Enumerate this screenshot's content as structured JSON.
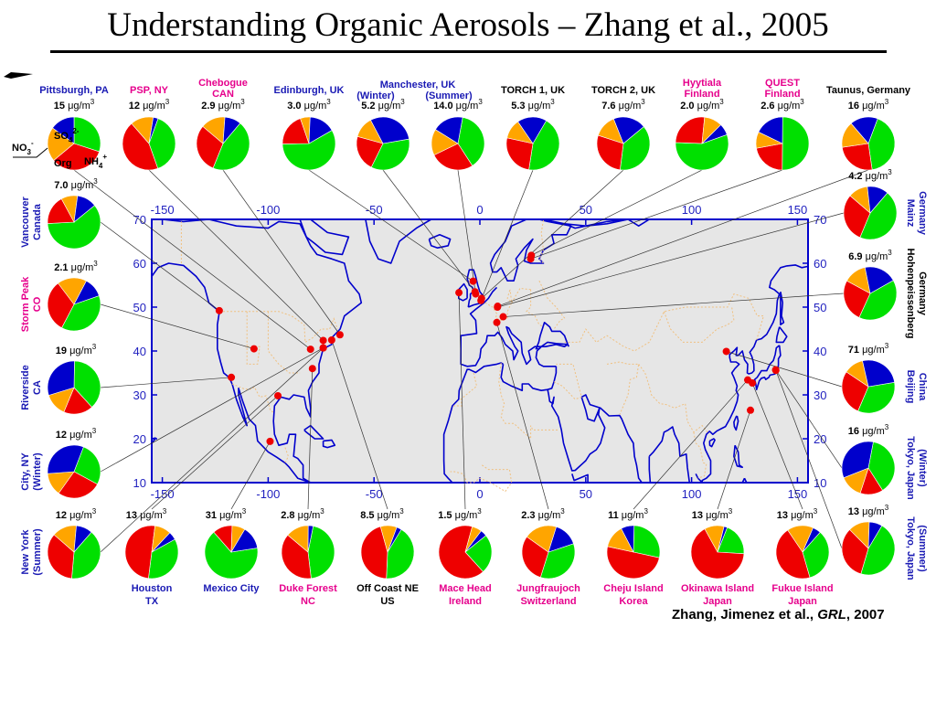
{
  "title": "Understanding Organic Aerosols – Zhang et al., 2005",
  "credit": {
    "authors": "Zhang, Jimenez et al., ",
    "journal": "GRL",
    "year": ", 2007"
  },
  "unit": "μg/m",
  "unit_sup": "3",
  "legend": {
    "so4": "SO",
    "so4_sub": "4",
    "so4_sup": "2-",
    "no3": "NO",
    "no3_sub": "3",
    "no3_sup": "-",
    "org": "Org",
    "nh4": "NH",
    "nh4_sub": "4",
    "nh4_sup": "+"
  },
  "colors": {
    "org": "#00e000",
    "so4": "#ee0000",
    "nh4": "#ffa500",
    "no3": "#0000cc",
    "map_bg": "#e6e6e6",
    "coast": "#0000cc",
    "border": "#f0c080",
    "site": "#ee0000",
    "label_blue": "#1a1ab4",
    "label_pink": "#e6008c",
    "label_black": "#000000"
  },
  "axes": {
    "lon_ticks": [
      "-150",
      "-100",
      "-50",
      "0",
      "50",
      "100",
      "150"
    ],
    "lat_ticks": [
      "70",
      "60",
      "50",
      "40",
      "30",
      "20",
      "10"
    ]
  },
  "chart_data": {
    "type": "pie",
    "component_order": [
      "Org",
      "SO4",
      "NH4",
      "NO3"
    ],
    "sites": [
      {
        "name": "Pittsburgh, PA",
        "conc": "15",
        "fractions": [
          0.3,
          0.34,
          0.21,
          0.15
        ],
        "type": "urban"
      },
      {
        "name": "PSP, NY",
        "conc": "12",
        "fractions": [
          0.39,
          0.44,
          0.14,
          0.03
        ],
        "type": "urban-downwind"
      },
      {
        "name": "Chebogue CAN",
        "conc": "2.9",
        "fractions": [
          0.45,
          0.3,
          0.15,
          0.1
        ],
        "type": "urban-downwind"
      },
      {
        "name": "Edinburgh, UK",
        "conc": "3.0",
        "fractions": [
          0.58,
          0.2,
          0.06,
          0.16
        ],
        "type": "urban"
      },
      {
        "name": "Manchester, UK (Winter)",
        "conc": "5.2",
        "fractions": [
          0.35,
          0.22,
          0.13,
          0.3
        ],
        "type": "urban"
      },
      {
        "name": "Manchester, UK (Summer)",
        "conc": "14.0",
        "fractions": [
          0.38,
          0.27,
          0.16,
          0.19
        ],
        "type": "urban"
      },
      {
        "name": "TORCH 1, UK",
        "conc": "5.3",
        "fractions": [
          0.44,
          0.26,
          0.12,
          0.18
        ],
        "type": "urban-downwind"
      },
      {
        "name": "TORCH 2, UK",
        "conc": "7.6",
        "fractions": [
          0.38,
          0.28,
          0.14,
          0.2
        ],
        "type": "urban-downwind"
      },
      {
        "name": "Hyytiala Finland",
        "conc": "2.0",
        "fractions": [
          0.56,
          0.26,
          0.11,
          0.07
        ],
        "type": "rural"
      },
      {
        "name": "QUEST Finland",
        "conc": "2.6",
        "fractions": [
          0.5,
          0.22,
          0.1,
          0.18
        ],
        "type": "rural"
      },
      {
        "name": "Taunus, Germany",
        "conc": "16",
        "fractions": [
          0.42,
          0.25,
          0.16,
          0.17
        ],
        "type": "urban-downwind"
      },
      {
        "name": "Mainz Germany",
        "conc": "4.2",
        "fractions": [
          0.45,
          0.3,
          0.12,
          0.13
        ],
        "type": "urban-downwind"
      },
      {
        "name": "Hohenpeissenberg Germany",
        "conc": "6.9",
        "fractions": [
          0.4,
          0.26,
          0.14,
          0.2
        ],
        "type": "rural"
      },
      {
        "name": "Beijing China",
        "conc": "71",
        "fractions": [
          0.34,
          0.28,
          0.12,
          0.26
        ],
        "type": "urban"
      },
      {
        "name": "Tokyo, Japan (Winter)",
        "conc": "16",
        "fractions": [
          0.38,
          0.14,
          0.14,
          0.34
        ],
        "type": "urban"
      },
      {
        "name": "Tokyo, Japan (Summer)",
        "conc": "13",
        "fractions": [
          0.46,
          0.33,
          0.13,
          0.08
        ],
        "type": "urban"
      },
      {
        "name": "Vancouver Canada",
        "conc": "7.0",
        "fractions": [
          0.6,
          0.18,
          0.1,
          0.12
        ],
        "type": "urban"
      },
      {
        "name": "Storm Peak CO",
        "conc": "2.1",
        "fractions": [
          0.38,
          0.32,
          0.18,
          0.12
        ],
        "type": "rural"
      },
      {
        "name": "Riverside CA",
        "conc": "19",
        "fractions": [
          0.38,
          0.18,
          0.14,
          0.3
        ],
        "type": "urban"
      },
      {
        "name": "New York City, NY (Winter)",
        "conc": "12",
        "fractions": [
          0.27,
          0.27,
          0.14,
          0.32
        ],
        "type": "urban"
      },
      {
        "name": "New York City, NY (Summer)",
        "conc": "12",
        "fractions": [
          0.4,
          0.35,
          0.15,
          0.1
        ],
        "type": "urban"
      },
      {
        "name": "Houston TX",
        "conc": "13",
        "fractions": [
          0.35,
          0.5,
          0.1,
          0.05
        ],
        "type": "urban"
      },
      {
        "name": "Mexico City",
        "conc": "31",
        "fractions": [
          0.66,
          0.12,
          0.08,
          0.14
        ],
        "type": "urban"
      },
      {
        "name": "Duke Forest NC",
        "conc": "2.8",
        "fractions": [
          0.45,
          0.38,
          0.14,
          0.03
        ],
        "type": "rural"
      },
      {
        "name": "Off Coast NE US",
        "conc": "8.5",
        "fractions": [
          0.42,
          0.45,
          0.1,
          0.03
        ],
        "type": "urban-downwind"
      },
      {
        "name": "Mace Head Ireland",
        "conc": "1.5",
        "fractions": [
          0.24,
          0.66,
          0.06,
          0.04
        ],
        "type": "rural"
      },
      {
        "name": "Jungfraujoch Switzerland",
        "conc": "2.3",
        "fractions": [
          0.35,
          0.3,
          0.2,
          0.15
        ],
        "type": "rural"
      },
      {
        "name": "Cheju Island Korea",
        "conc": "11",
        "fractions": [
          0.28,
          0.5,
          0.14,
          0.08
        ],
        "type": "rural"
      },
      {
        "name": "Okinawa Island Japan",
        "conc": "13",
        "fractions": [
          0.2,
          0.66,
          0.12,
          0.02
        ],
        "type": "rural"
      },
      {
        "name": "Fukue Island Japan",
        "conc": "13",
        "fractions": [
          0.34,
          0.45,
          0.16,
          0.05
        ],
        "type": "rural"
      }
    ]
  }
}
